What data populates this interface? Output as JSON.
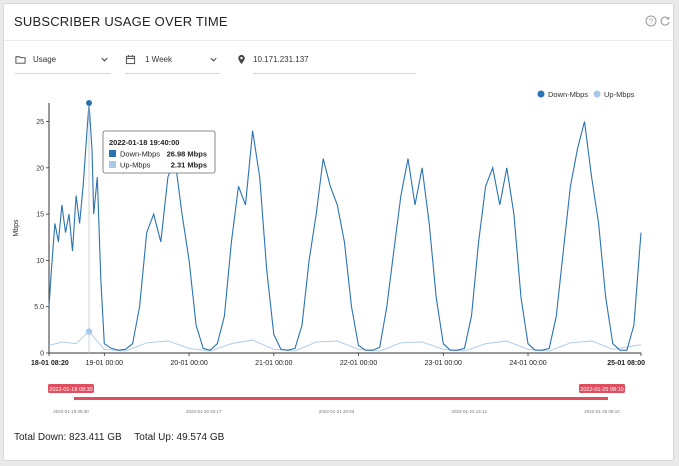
{
  "header": {
    "title": "SUBSCRIBER USAGE OVER TIME",
    "help_icon": "help-circle-icon",
    "refresh_icon": "refresh-icon"
  },
  "controls": {
    "metric": {
      "icon": "folder-icon",
      "value": "Usage"
    },
    "period": {
      "icon": "calendar-icon",
      "value": "1 Week"
    },
    "location": {
      "icon": "map-pin-icon",
      "value": "10.171.231.137"
    }
  },
  "colors": {
    "down": "#2a73b2",
    "up": "#a9c8ea",
    "navigator": "#e04f5f"
  },
  "tooltip": {
    "time": "2022-01-18 19:40:00",
    "rows": [
      {
        "name": "Down-Mbps",
        "value": "26.98 Mbps"
      },
      {
        "name": "Up-Mbps",
        "value": "2.31 Mbps"
      }
    ]
  },
  "navigator": {
    "start_label": "2022-01-18 08:30",
    "end_label": "2022-01-25 08:10",
    "ticks": [
      "2022-01-18 08:30",
      "2022-01-20 02:17",
      "2022-01-21 20:03",
      "2022-01-23 14:12",
      "2022-01-25 08:10"
    ]
  },
  "chart_data": {
    "type": "line",
    "ylabel": "Mbps",
    "ylim": [
      0,
      27
    ],
    "yticks": [
      "0",
      "5.0",
      "10",
      "15",
      "20",
      "25"
    ],
    "xticks": [
      "18-01 08:20",
      "19-01 00:00",
      "20-01 00:00",
      "21-01 00:00",
      "22-01 00:00",
      "23-01 00:00",
      "24-01 00:00",
      "25-01 08:00"
    ],
    "legend_position": "top-right",
    "series": [
      {
        "name": "Down-Mbps",
        "x": [
          "18-01 08:20",
          "18-01 09:00",
          "18-01 10:00",
          "18-01 11:00",
          "18-01 12:00",
          "18-01 13:00",
          "18-01 14:00",
          "18-01 15:00",
          "18-01 16:00",
          "18-01 17:00",
          "18-01 18:00",
          "18-01 19:40",
          "18-01 20:30",
          "18-01 21:00",
          "18-01 22:00",
          "18-01 23:00",
          "19-01 00:00",
          "19-01 02:00",
          "19-01 04:00",
          "19-01 06:00",
          "19-01 08:00",
          "19-01 10:00",
          "19-01 12:00",
          "19-01 14:00",
          "19-01 16:00",
          "19-01 18:00",
          "19-01 20:00",
          "19-01 22:00",
          "20-01 00:00",
          "20-01 02:00",
          "20-01 04:00",
          "20-01 06:00",
          "20-01 08:00",
          "20-01 10:00",
          "20-01 12:00",
          "20-01 14:00",
          "20-01 16:00",
          "20-01 18:00",
          "20-01 20:00",
          "20-01 22:00",
          "21-01 00:00",
          "21-01 02:00",
          "21-01 04:00",
          "21-01 06:00",
          "21-01 08:00",
          "21-01 10:00",
          "21-01 12:00",
          "21-01 14:00",
          "21-01 16:00",
          "21-01 18:00",
          "21-01 20:00",
          "21-01 22:00",
          "22-01 00:00",
          "22-01 02:00",
          "22-01 04:00",
          "22-01 06:00",
          "22-01 08:00",
          "22-01 10:00",
          "22-01 12:00",
          "22-01 14:00",
          "22-01 16:00",
          "22-01 18:00",
          "22-01 20:00",
          "22-01 22:00",
          "23-01 00:00",
          "23-01 02:00",
          "23-01 04:00",
          "23-01 06:00",
          "23-01 08:00",
          "23-01 10:00",
          "23-01 12:00",
          "23-01 14:00",
          "23-01 16:00",
          "23-01 18:00",
          "23-01 20:00",
          "23-01 22:00",
          "24-01 00:00",
          "24-01 02:00",
          "24-01 04:00",
          "24-01 06:00",
          "24-01 08:00",
          "24-01 10:00",
          "24-01 12:00",
          "24-01 14:00",
          "24-01 16:00",
          "24-01 18:00",
          "24-01 20:00",
          "24-01 22:00",
          "25-01 00:00",
          "25-01 02:00",
          "25-01 04:00",
          "25-01 06:00",
          "25-01 08:00"
        ],
        "values": [
          5,
          9,
          14,
          12,
          16,
          13,
          15,
          11,
          17,
          14,
          18,
          27,
          22,
          15,
          19,
          8,
          1,
          0.5,
          0.3,
          0.4,
          1,
          5,
          13,
          15,
          12,
          19,
          21,
          15,
          10,
          3,
          0.5,
          0.3,
          1,
          4,
          12,
          18,
          16,
          24,
          19,
          9,
          2,
          0.4,
          0.3,
          0.5,
          3,
          10,
          15,
          21,
          18,
          16,
          12,
          5,
          0.8,
          0.3,
          0.3,
          0.6,
          5,
          11,
          17,
          21,
          16,
          20,
          14,
          6,
          1,
          0.3,
          0.3,
          0.5,
          4,
          12,
          18,
          20,
          16,
          20,
          15,
          6,
          1,
          0.3,
          0.3,
          0.5,
          4,
          11,
          18,
          22,
          25,
          19,
          14,
          6,
          1,
          0.3,
          0.3,
          3,
          13
        ]
      },
      {
        "name": "Up-Mbps",
        "x": [
          "18-01 08:20",
          "18-01 12:00",
          "18-01 16:00",
          "18-01 19:40",
          "19-01 00:00",
          "19-01 06:00",
          "19-01 12:00",
          "19-01 18:00",
          "20-01 00:00",
          "20-01 06:00",
          "20-01 12:00",
          "20-01 18:00",
          "21-01 00:00",
          "21-01 06:00",
          "21-01 12:00",
          "21-01 18:00",
          "22-01 00:00",
          "22-01 06:00",
          "22-01 12:00",
          "22-01 18:00",
          "23-01 00:00",
          "23-01 06:00",
          "23-01 12:00",
          "23-01 18:00",
          "24-01 00:00",
          "24-01 06:00",
          "24-01 12:00",
          "24-01 18:00",
          "25-01 00:00",
          "25-01 08:00"
        ],
        "values": [
          0.8,
          1.2,
          1.0,
          2.31,
          0.4,
          0.2,
          1.1,
          1.3,
          0.5,
          0.2,
          1.0,
          1.4,
          0.4,
          0.2,
          1.2,
          1.3,
          0.4,
          0.2,
          1.1,
          1.2,
          0.4,
          0.2,
          1.0,
          1.3,
          0.4,
          0.2,
          1.1,
          1.3,
          0.4,
          0.9
        ]
      }
    ]
  },
  "totals": {
    "down": "Total Down: 823.411 GB",
    "up": "Total Up: 49.574 GB"
  }
}
